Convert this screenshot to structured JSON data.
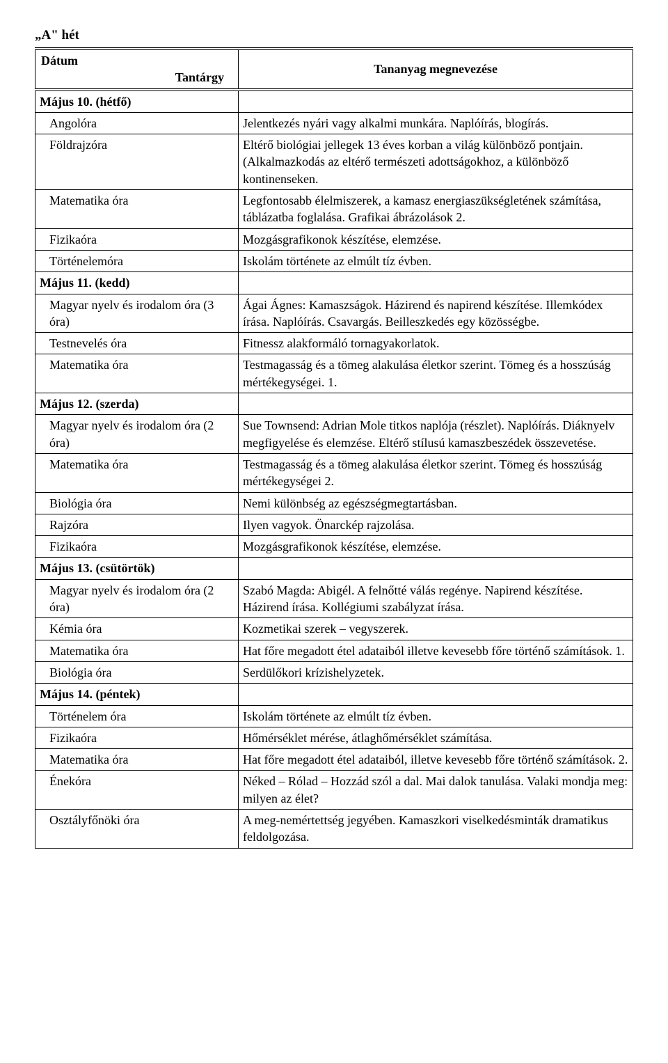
{
  "week_title": "„A\" hét",
  "header": {
    "date_label": "Dátum",
    "subject_label": "Tantárgy",
    "content_label": "Tananyag megnevezése"
  },
  "rows": [
    {
      "type": "day",
      "left": "Május 10. (hétfő)",
      "right": ""
    },
    {
      "type": "subject",
      "left": "Angolóra",
      "right": "Jelentkezés nyári vagy alkalmi munkára. Naplóírás, blogírás."
    },
    {
      "type": "subject",
      "left": "Földrajzóra",
      "right": "Eltérő biológiai jellegek 13 éves korban a világ különböző pontjain. (Alkalmazkodás az eltérő természeti adottságokhoz, a különböző kontinenseken."
    },
    {
      "type": "subject",
      "left": "Matematika óra",
      "right": "Legfontosabb élelmiszerek, a kamasz energiaszükségletének számítása, táblázatba foglalása. Grafikai ábrázolások 2."
    },
    {
      "type": "subject",
      "left": "Fizikaóra",
      "right": "Mozgásgrafikonok készítése, elemzése."
    },
    {
      "type": "subject",
      "left": "Történelemóra",
      "right": "Iskolám története az elmúlt tíz évben."
    },
    {
      "type": "day",
      "left": "Május 11. (kedd)",
      "right": ""
    },
    {
      "type": "subject",
      "left": "Magyar nyelv és irodalom óra (3 óra)",
      "right": "Ágai Ágnes: Kamaszságok. Házirend és napirend készítése. Illemkódex írása. Naplóírás. Csavargás. Beilleszkedés egy közösségbe."
    },
    {
      "type": "subject",
      "left": "Testnevelés óra",
      "right": "Fitnessz alakformáló tornagyakorlatok."
    },
    {
      "type": "subject",
      "left": "Matematika óra",
      "right": "Testmagasság és a tömeg alakulása életkor szerint. Tömeg és a hosszúság mértékegységei. 1."
    },
    {
      "type": "day",
      "left": "Május 12. (szerda)",
      "right": ""
    },
    {
      "type": "subject",
      "left": "Magyar nyelv és irodalom óra (2 óra)",
      "right": "Sue Townsend: Adrian Mole titkos naplója (részlet). Naplóírás. Diáknyelv megfigyelése és elemzése. Eltérő stílusú kamaszbeszédek összevetése."
    },
    {
      "type": "subject",
      "left": "Matematika óra",
      "right": "Testmagasság és a tömeg alakulása életkor szerint. Tömeg és hosszúság mértékegységei 2."
    },
    {
      "type": "subject",
      "left": "Biológia óra",
      "right": "Nemi különbség az egészségmegtartásban."
    },
    {
      "type": "subject",
      "left": "Rajzóra",
      "right": "Ilyen vagyok. Önarckép rajzolása."
    },
    {
      "type": "subject",
      "left": "Fizikaóra",
      "right": "Mozgásgrafikonok készítése, elemzése."
    },
    {
      "type": "day",
      "left": "Május 13. (csütörtök)",
      "right": ""
    },
    {
      "type": "subject",
      "left": "Magyar nyelv és irodalom óra (2 óra)",
      "right": "Szabó Magda: Abigél. A felnőtté válás regénye. Napirend készítése. Házirend írása. Kollégiumi szabályzat írása."
    },
    {
      "type": "subject",
      "left": "Kémia óra",
      "right": "Kozmetikai szerek – vegyszerek."
    },
    {
      "type": "subject",
      "left": "Matematika óra",
      "right": "Hat főre megadott étel adataiból illetve kevesebb főre történő számítások. 1."
    },
    {
      "type": "subject",
      "left": "Biológia óra",
      "right": "Serdülőkori krízishelyzetek."
    },
    {
      "type": "day",
      "left": "Május 14. (péntek)",
      "right": ""
    },
    {
      "type": "subject",
      "left": "Történelem óra",
      "right": "Iskolám története az elmúlt tíz évben."
    },
    {
      "type": "subject",
      "left": "Fizikaóra",
      "right": "Hőmérséklet mérése, átlaghőmérséklet számítása."
    },
    {
      "type": "subject",
      "left": "Matematika óra",
      "right": "Hat főre megadott étel adataiból, illetve kevesebb főre történő számítások. 2."
    },
    {
      "type": "subject",
      "left": "Énekóra",
      "right": "Néked – Rólad – Hozzád szól a dal. Mai dalok tanulása. Valaki mondja meg: milyen az élet?"
    },
    {
      "type": "subject",
      "left": "Osztályfőnöki óra",
      "right": "A meg-nemértettség jegyében. Kamaszkori viselkedésminták dramatikus feldolgozása."
    }
  ]
}
